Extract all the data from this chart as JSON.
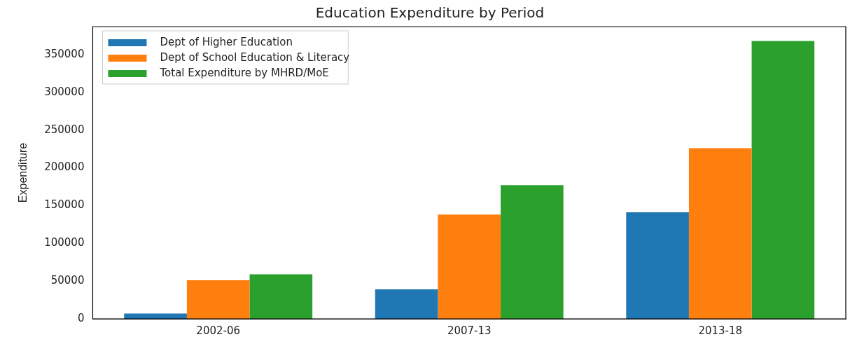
{
  "chart_data": {
    "type": "bar",
    "title": "Education Expenditure by Period",
    "ylabel": "Expenditure",
    "categories": [
      "2002-06",
      "2007-13",
      "2013-18"
    ],
    "series": [
      {
        "name": "Dept of Higher Education",
        "color": "#1f77b4",
        "values": [
          7000,
          39000,
          141000
        ]
      },
      {
        "name": "Dept of School Education & Literacy",
        "color": "#ff7f0e",
        "values": [
          51000,
          138000,
          226000
        ]
      },
      {
        "name": "Total Expenditure by MHRD/MoE",
        "color": "#2ca02c",
        "values": [
          59000,
          177000,
          368000
        ]
      }
    ],
    "ylim": [
      0,
      387000
    ],
    "yticks": [
      0,
      50000,
      100000,
      150000,
      200000,
      250000,
      300000,
      350000
    ],
    "grid": false,
    "legend": "top left"
  }
}
